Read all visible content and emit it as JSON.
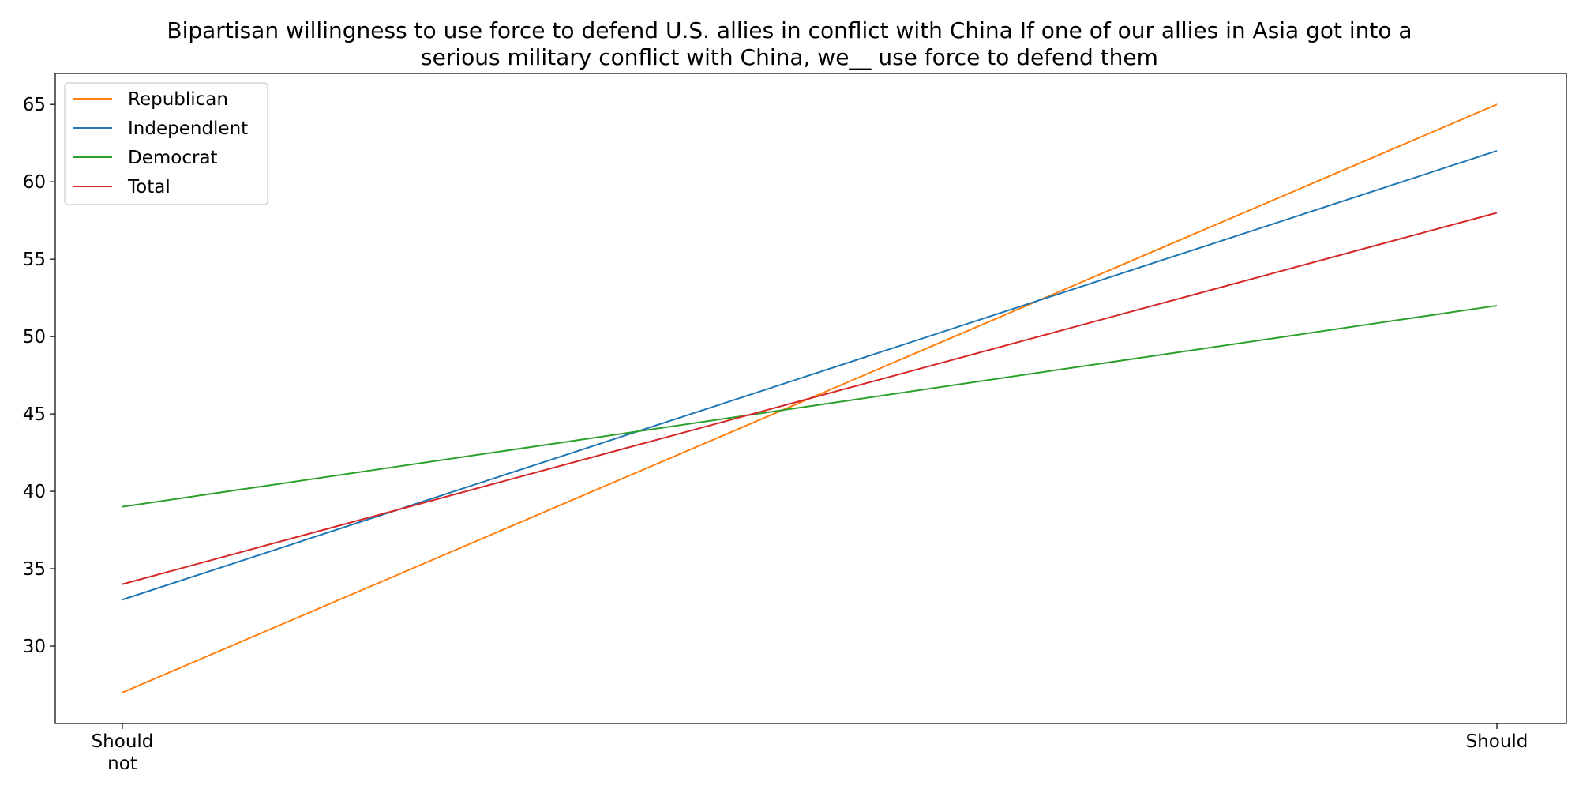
{
  "chart_data": {
    "type": "line",
    "title_lines": [
      "Bipartisan willingness to use force to defend U.S. allies in conflict with China If one of our allies in Asia got into a",
      "serious military conflict with China, we__ use force to defend them"
    ],
    "categories": [
      [
        "Should",
        "not"
      ],
      [
        "Should"
      ]
    ],
    "ylim": [
      25,
      67
    ],
    "yticks": [
      30,
      35,
      40,
      45,
      50,
      55,
      60,
      65
    ],
    "grid": false,
    "legend_position": "top-left",
    "series": [
      {
        "name": "Republican",
        "color": "#ff7f0e",
        "values": [
          27,
          65
        ]
      },
      {
        "name": "Independlent",
        "color": "#1f77b4",
        "values": [
          33,
          62
        ]
      },
      {
        "name": "Democrat",
        "color": "#2ca02c",
        "values": [
          39,
          52
        ]
      },
      {
        "name": "Total",
        "color": "#d62728",
        "values": [
          34,
          58
        ]
      }
    ]
  }
}
